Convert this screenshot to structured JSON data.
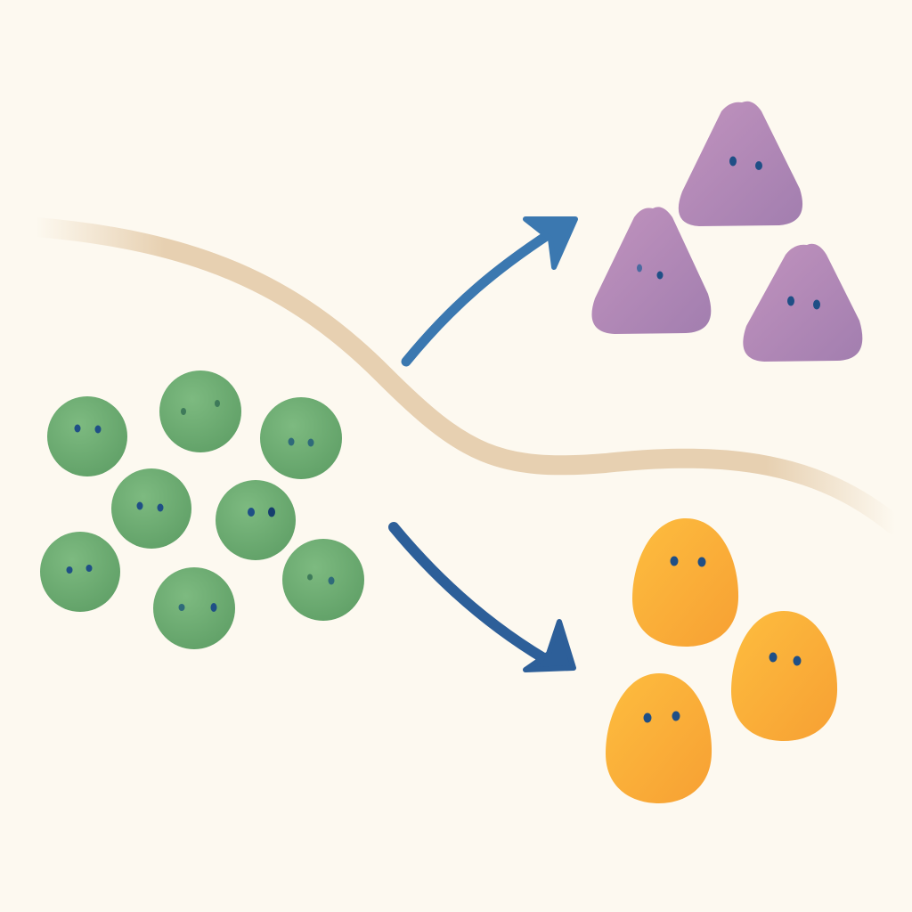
{
  "colors": {
    "background": "#fdf9f0",
    "divider": "#e3c9a6",
    "arrow": "#2f6aa3",
    "eye": "#1f4f86",
    "green_blob": "#6fae74",
    "purple_blob": "#b48ab8",
    "orange_blob": "#fbb03b"
  },
  "diagram": {
    "source_group": {
      "shape": "circle",
      "count": 8
    },
    "upper_group": {
      "shape": "triangle",
      "count": 3
    },
    "lower_group": {
      "shape": "egg",
      "count": 3
    },
    "arrows": [
      "to-upper-group",
      "to-lower-group"
    ]
  }
}
